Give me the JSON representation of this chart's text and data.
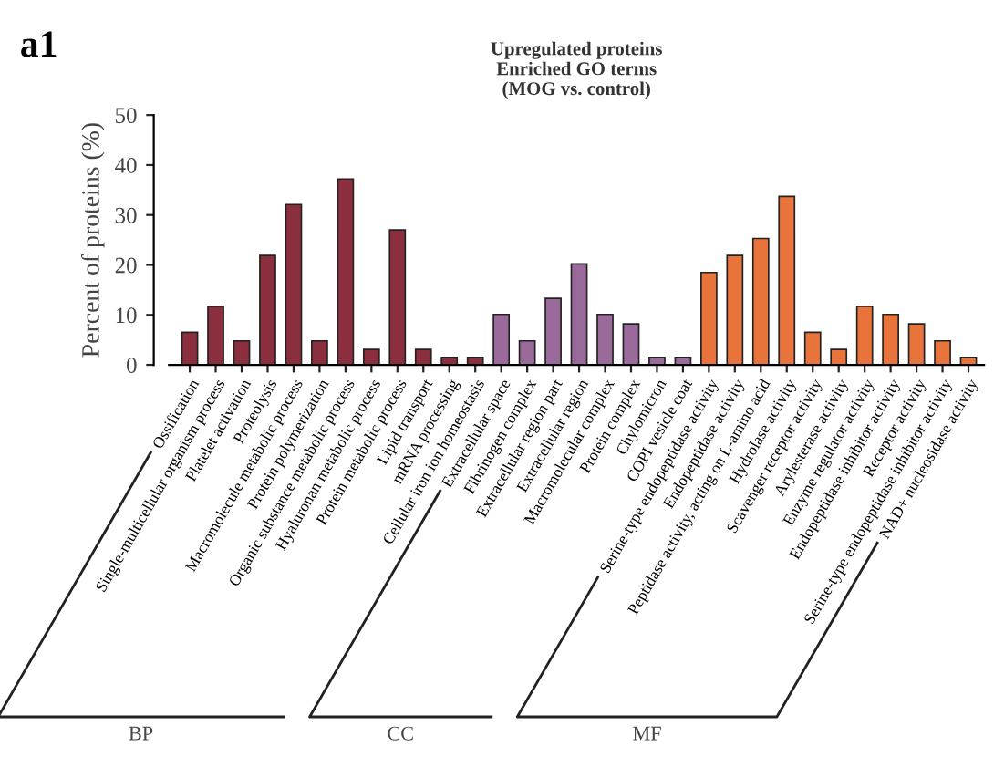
{
  "chart_data": {
    "type": "bar",
    "title": "Upregulated proteins\nEnriched GO terms\n(MOG vs. control)",
    "ylabel": "Percent of proteins (%)",
    "annotations": [
      "a1",
      "BP",
      "CC",
      "MF"
    ],
    "categories": [
      "Ossification",
      "Single-multicellular organism process",
      "Platelet activation",
      "Proteolysis",
      "Macromolecule metabolic process",
      "Protein polymerization",
      "Organic substance metabolic process",
      "Hyaluronan metabolic process",
      "Protein metabolic process",
      "Lipid transport",
      "mRNA processing",
      "Cellular iron ion homeostasis",
      "Extracellular space",
      "Fibrinogen complex",
      "Extracellular region part",
      "Extracellular region",
      "Macromolecular complex",
      "Protein complex",
      "Chylomicron",
      "COPI vesicle coat",
      "Serine-type endopeptidase activity",
      "Endopeptidase activity",
      "Peptidase activity, acting on L-amino acid",
      "Hydrolase activity",
      "Scavenger receptor activity",
      "Arylesterase activity",
      "Enzyme regulator activity",
      "Endopeptidase inhibitor activity",
      "Receptor activity",
      "Serine-type endopeptidase inhibitor activity",
      "NAD+ nucleosidase activity"
    ],
    "values": [
      6.5,
      11.7,
      4.8,
      21.9,
      32.1,
      4.8,
      37.2,
      3.1,
      27,
      3.1,
      1.5,
      1.5,
      10.1,
      4.8,
      13.3,
      20.2,
      10.1,
      8.2,
      1.5,
      1.5,
      18.5,
      21.9,
      25.3,
      33.7,
      6.5,
      3.1,
      11.7,
      10.1,
      8.2,
      4.8,
      1.5
    ],
    "colors": [
      "#8b2e3e",
      "#8b2e3e",
      "#8b2e3e",
      "#8b2e3e",
      "#8b2e3e",
      "#8b2e3e",
      "#8b2e3e",
      "#8b2e3e",
      "#8b2e3e",
      "#8b2e3e",
      "#8b2e3e",
      "#8b2e3e",
      "#9a6a9a",
      "#9a6a9a",
      "#9a6a9a",
      "#9a6a9a",
      "#9a6a9a",
      "#9a6a9a",
      "#9a6a9a",
      "#9a6a9a",
      "#e8743b",
      "#e8743b",
      "#e8743b",
      "#e8743b",
      "#e8743b",
      "#e8743b",
      "#e8743b",
      "#e8743b",
      "#e8743b",
      "#e8743b",
      "#e8743b"
    ],
    "ylim": [
      0,
      50
    ],
    "yticks": [
      0,
      10,
      20,
      30,
      40,
      50
    ]
  }
}
